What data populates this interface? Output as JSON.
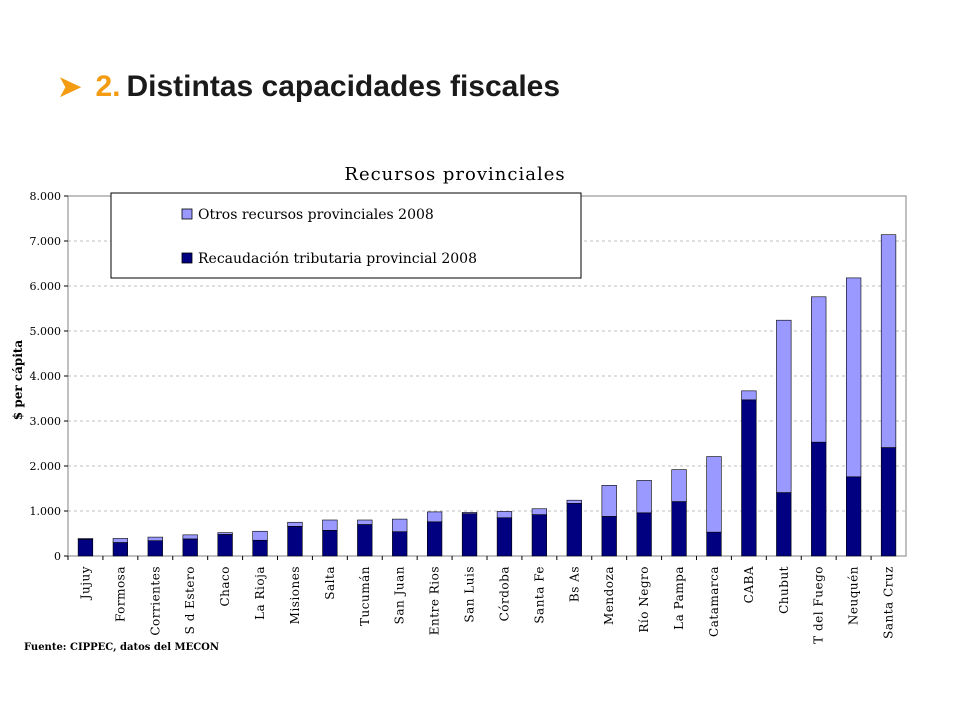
{
  "slide": {
    "title_number": "2.",
    "title_text": "Distintas capacidades fiscales",
    "accent_color": "#f39c12",
    "arrow_icon": "arrow-right-icon"
  },
  "source_note": "Fuente: CIPPEC, datos del MECON",
  "chart_data": {
    "type": "bar",
    "stacked": true,
    "title": "Recursos provinciales",
    "xlabel": "",
    "ylabel": "$ per cápita",
    "ylim": [
      0,
      8000
    ],
    "yticks": [
      "0",
      "1.000",
      "2.000",
      "3.000",
      "4.000",
      "5.000",
      "6.000",
      "7.000",
      "8.000"
    ],
    "ytick_values": [
      0,
      1000,
      2000,
      3000,
      4000,
      5000,
      6000,
      7000,
      8000
    ],
    "grid": true,
    "legend_position": "top-left",
    "categories": [
      "Jujuy",
      "Formosa",
      "Corrientes",
      "S d Estero",
      "Chaco",
      "La Rioja",
      "Misiones",
      "Salta",
      "Tucumán",
      "San Juan",
      "Entre Rios",
      "San Luis",
      "Córdoba",
      "Santa Fe",
      "Bs As",
      "Mendoza",
      "Río Negro",
      "La Pampa",
      "Catamarca",
      "CABA",
      "Chubut",
      "T del Fuego",
      "Neuquén",
      "Santa Cruz"
    ],
    "series": [
      {
        "name": "Recaudación tributaria provincial 2008",
        "color": "#000080",
        "values": [
          370,
          300,
          340,
          380,
          480,
          350,
          660,
          570,
          700,
          540,
          760,
          940,
          850,
          920,
          1170,
          880,
          960,
          1210,
          530,
          3470,
          1410,
          2530,
          1760,
          2410
        ]
      },
      {
        "name": "Otros recursos provinciales 2008",
        "color": "#9999ff",
        "values": [
          20,
          90,
          80,
          90,
          40,
          200,
          90,
          230,
          100,
          280,
          220,
          30,
          140,
          130,
          70,
          690,
          720,
          710,
          1680,
          200,
          3830,
          3230,
          4420,
          4730
        ]
      }
    ]
  }
}
